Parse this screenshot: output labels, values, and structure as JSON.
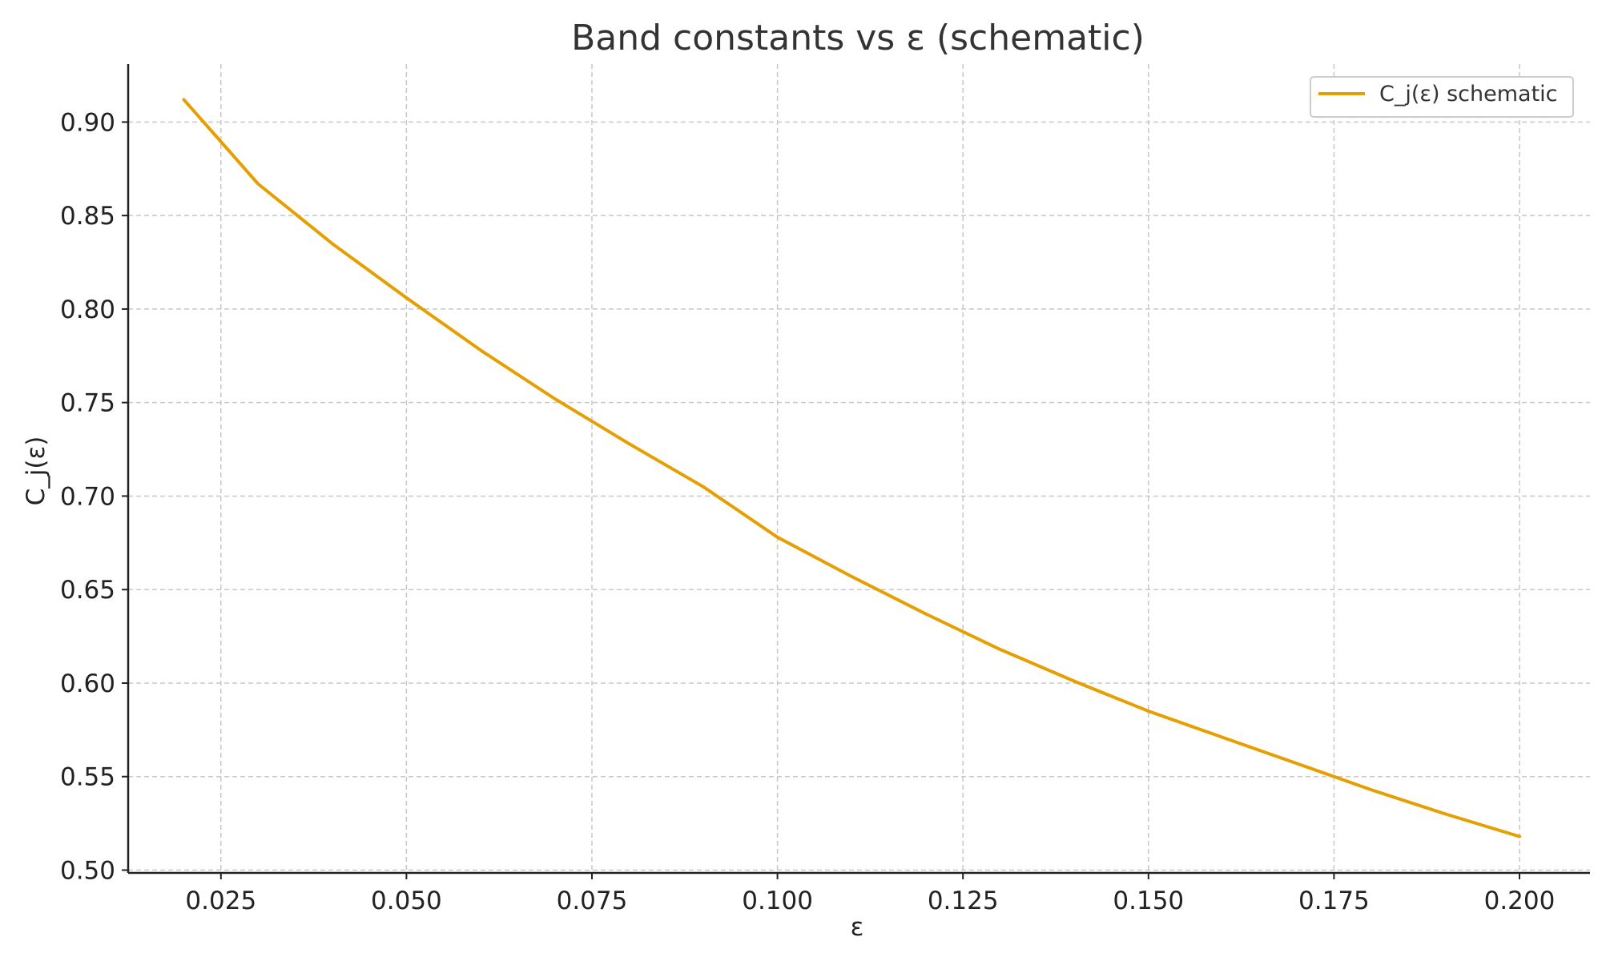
{
  "chart_data": {
    "type": "line",
    "title": "Band constants vs ε (schematic)",
    "xlabel": "ε",
    "ylabel": "C_j(ε)",
    "xlim": [
      0.0125,
      0.2095
    ],
    "ylim": [
      0.4985,
      0.931
    ],
    "xticks": [
      "0.025",
      "0.050",
      "0.075",
      "0.100",
      "0.125",
      "0.150",
      "0.175",
      "0.200"
    ],
    "yticks": [
      "0.50",
      "0.55",
      "0.60",
      "0.65",
      "0.70",
      "0.75",
      "0.80",
      "0.85",
      "0.90"
    ],
    "grid": true,
    "legend_position": "top-right",
    "series": [
      {
        "name": "C_j(ε) schematic",
        "color": "#e69f00",
        "x": [
          0.02,
          0.03,
          0.04,
          0.05,
          0.06,
          0.07,
          0.08,
          0.09,
          0.1,
          0.11,
          0.12,
          0.13,
          0.14,
          0.15,
          0.16,
          0.17,
          0.18,
          0.19,
          0.2
        ],
        "y": [
          0.912,
          0.867,
          0.835,
          0.806,
          0.778,
          0.752,
          0.728,
          0.705,
          0.678,
          0.657,
          0.637,
          0.618,
          0.601,
          0.585,
          0.571,
          0.557,
          0.543,
          0.53,
          0.518
        ]
      }
    ]
  }
}
